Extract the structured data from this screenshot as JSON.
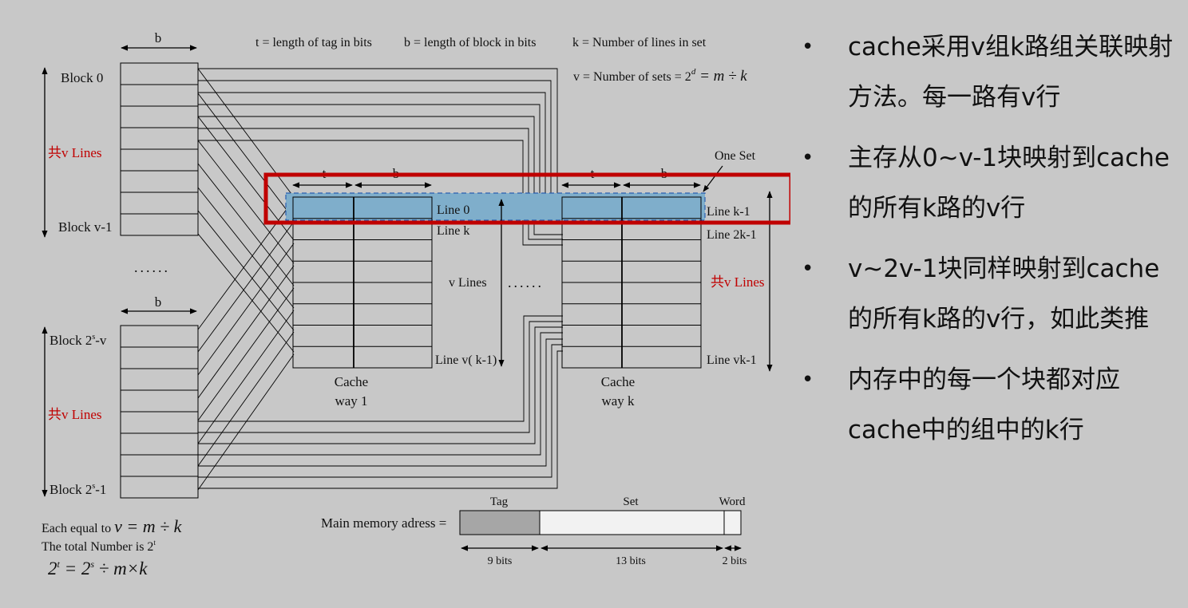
{
  "diagram": {
    "header": {
      "t_def": "t = length of tag in bits",
      "b_def": "b = length of block in bits",
      "k_def": "k = Number of lines in set",
      "v_def_prefix": "v = Number of sets = 2",
      "v_def_exp": "d",
      "v_def_suffix": " = m ÷ k"
    },
    "memory": {
      "b_label": "b",
      "block_0": "Block 0",
      "block_v1": "Block v-1",
      "lines_label_1": "共v Lines",
      "ellipsis": "......",
      "b_label_2": "b",
      "block_2s_v_prefix": "Block 2",
      "block_2s_v_exp": "s",
      "block_2s_v_suffix": "-v",
      "lines_label_2": "共v Lines",
      "block_2s_1_prefix": "Block 2",
      "block_2s_1_exp": "s",
      "block_2s_1_suffix": "-1",
      "bottom_note_1_prefix": "Each equal to ",
      "bottom_note_1_formula": "v = m ÷ k",
      "bottom_note_2_prefix": "The total Number is 2",
      "bottom_note_2_exp": "t",
      "bottom_note_3_base": "2",
      "bottom_note_3_exp1": "t",
      "bottom_note_3_mid": " = 2",
      "bottom_note_3_exp2": "s",
      "bottom_note_3_suffix": " ÷ m×k"
    },
    "way1": {
      "t_label": "t",
      "b_label": "b",
      "line_0": "Line 0",
      "line_k": "Line k",
      "v_lines": "v Lines",
      "line_last": "Line v( k-1)",
      "caption_1": "Cache",
      "caption_2": "way 1"
    },
    "middle_ellipsis": "......",
    "wayk": {
      "t_label": "t",
      "b_label": "b",
      "one_set": "One Set",
      "line_k1": "Line k-1",
      "line_2k1": "Line 2k-1",
      "v_lines": "共v Lines",
      "line_vk1": "Line vk-1",
      "caption_1": "Cache",
      "caption_2": "way k"
    },
    "address": {
      "label": "Main memory adress =",
      "tag": "Tag",
      "set": "Set",
      "word": "Word",
      "tag_bits": "9 bits",
      "set_bits": "13 bits",
      "word_bits": "2 bits"
    }
  },
  "bullets": [
    "cache采用v组k路组关联映射方法。每一路有v行",
    "主存从0~v-1块映射到cache的所有k路的v行",
    "v~2v-1块同样映射到cache的所有k路的v行，如此类推",
    "内存中的每一个块都对应cache中的组中的k行"
  ],
  "colors": {
    "background": "#c8c8c8",
    "highlight_fill": "#7faecb",
    "highlight_dash": "#2a5fb0",
    "red_box": "#c00000",
    "tag_fill": "#a6a6a6"
  }
}
